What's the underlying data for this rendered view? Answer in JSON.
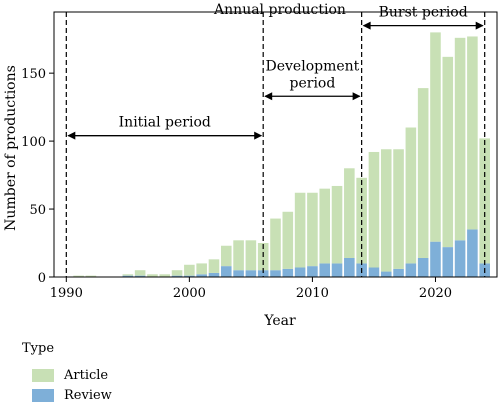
{
  "chart_data": {
    "type": "bar",
    "stacked": true,
    "title": "Annual production",
    "xlabel": "Year",
    "ylabel": "Number of productions",
    "xlim": [
      1989,
      2025
    ],
    "ylim": [
      0,
      195
    ],
    "x_ticks": [
      1990,
      2000,
      2010,
      2020
    ],
    "y_ticks": [
      0,
      50,
      100,
      150
    ],
    "years": [
      1990,
      1991,
      1992,
      1993,
      1994,
      1995,
      1996,
      1997,
      1998,
      1999,
      2000,
      2001,
      2002,
      2003,
      2004,
      2005,
      2006,
      2007,
      2008,
      2009,
      2010,
      2011,
      2012,
      2013,
      2014,
      2015,
      2016,
      2017,
      2018,
      2019,
      2020,
      2021,
      2022,
      2023,
      2024
    ],
    "series": [
      {
        "name": "Review",
        "color": "#7eafd8",
        "values": [
          0,
          0,
          0,
          0,
          0,
          1,
          1,
          0,
          0,
          1,
          1,
          2,
          3,
          8,
          5,
          5,
          5,
          5,
          6,
          7,
          8,
          10,
          10,
          14,
          10,
          7,
          4,
          6,
          10,
          14,
          26,
          22,
          27,
          35,
          10
        ]
      },
      {
        "name": "Article",
        "color": "#c8e0b5",
        "values": [
          0,
          1,
          1,
          0,
          0,
          1,
          4,
          2,
          2,
          4,
          8,
          8,
          10,
          15,
          22,
          22,
          20,
          38,
          42,
          55,
          54,
          55,
          57,
          66,
          63,
          85,
          90,
          88,
          100,
          125,
          154,
          140,
          149,
          142,
          92
        ]
      }
    ],
    "annotations": [
      {
        "label": "Initial period",
        "from": 1990,
        "to": 2006,
        "y": 104
      },
      {
        "label": "Development",
        "label2": "period",
        "from": 2006,
        "to": 2014,
        "y": 133
      },
      {
        "label": "Burst period",
        "from": 2014,
        "to": 2024,
        "y": 185
      }
    ],
    "period_lines": [
      1990,
      2006,
      2014,
      2024
    ],
    "legend": {
      "title": "Type",
      "placement": "bottom-left"
    }
  }
}
